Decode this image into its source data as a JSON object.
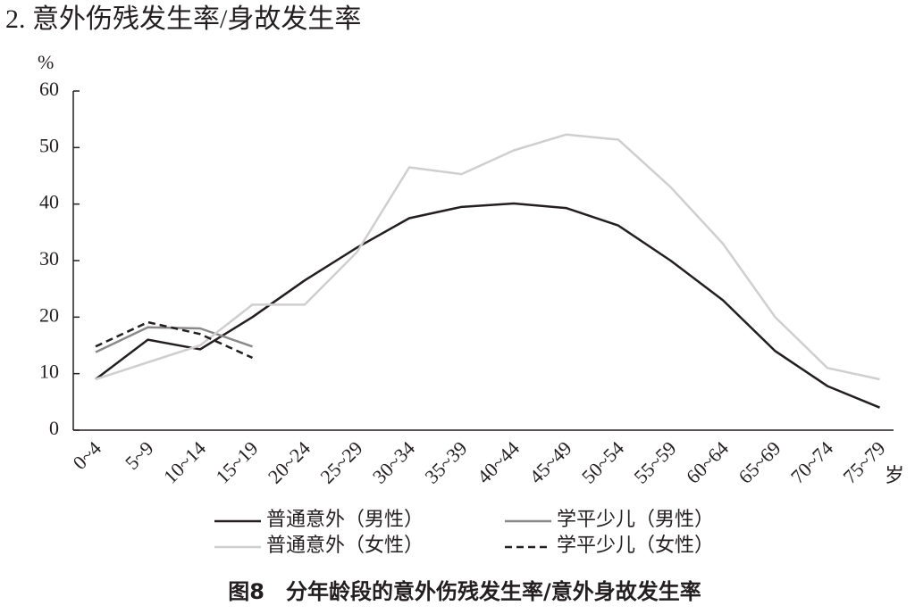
{
  "chart_data": {
    "type": "line",
    "title": "2. 意外伤残发生率/身故发生率",
    "y_unit": "%",
    "x_unit": "岁",
    "caption": "图8　分年龄段的意外伤残发生率/意外身故发生率",
    "categories": [
      "0~4",
      "5~9",
      "10~14",
      "15~19",
      "20~24",
      "25~29",
      "30~34",
      "35~39",
      "40~44",
      "45~49",
      "50~54",
      "55~59",
      "60~64",
      "65~69",
      "70~74",
      "75~79"
    ],
    "ylim": [
      0,
      60
    ],
    "yticks": [
      0,
      10,
      20,
      30,
      40,
      50,
      60
    ],
    "series": [
      {
        "name": "普通意外（男性）",
        "color": "#231f20",
        "dash": false,
        "values": [
          9,
          16,
          14.3,
          20,
          26.5,
          32.3,
          37.5,
          39.5,
          40.1,
          39.3,
          36.2,
          30,
          23,
          14,
          7.8,
          4
        ]
      },
      {
        "name": "学平少儿（男性）",
        "color": "#8a8a8a",
        "dash": false,
        "values": [
          13.8,
          18.2,
          18,
          14.8,
          null,
          null,
          null,
          null,
          null,
          null,
          null,
          null,
          null,
          null,
          null,
          null
        ]
      },
      {
        "name": "普通意外（女性）",
        "color": "#cfcfcf",
        "dash": false,
        "values": [
          9,
          12,
          15,
          22.2,
          22.2,
          31.5,
          46.5,
          45.3,
          49.5,
          52.3,
          51.4,
          43,
          33,
          20,
          11,
          9
        ]
      },
      {
        "name": "学平少儿（女性）",
        "color": "#231f20",
        "dash": true,
        "values": [
          14.8,
          19.1,
          17,
          12.8,
          null,
          null,
          null,
          null,
          null,
          null,
          null,
          null,
          null,
          null,
          null,
          null
        ]
      }
    ]
  }
}
